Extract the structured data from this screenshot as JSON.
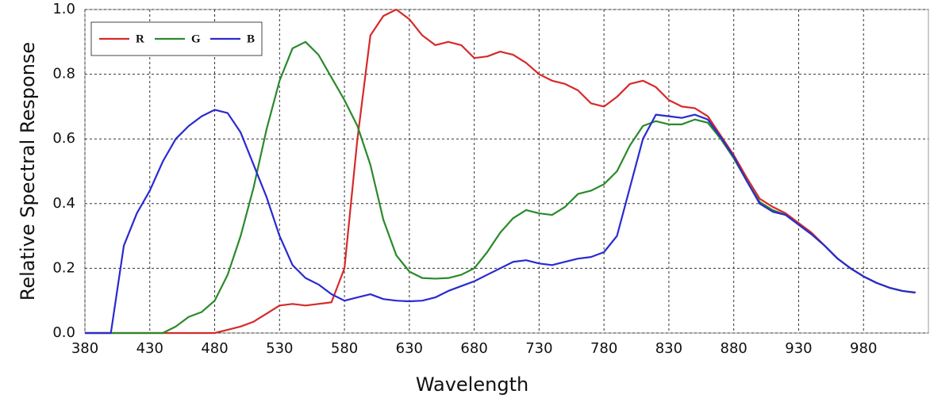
{
  "chart_data": {
    "type": "line",
    "xlabel": "Wavelength",
    "ylabel": "Relative Spectral Response",
    "x": [
      380,
      390,
      400,
      410,
      420,
      430,
      440,
      450,
      460,
      470,
      480,
      490,
      500,
      510,
      520,
      530,
      540,
      550,
      560,
      570,
      580,
      590,
      600,
      610,
      620,
      630,
      640,
      650,
      660,
      670,
      680,
      690,
      700,
      710,
      720,
      730,
      740,
      750,
      760,
      770,
      780,
      790,
      800,
      810,
      820,
      830,
      840,
      850,
      860,
      870,
      880,
      890,
      900,
      910,
      920,
      930,
      940,
      950,
      960,
      970,
      980,
      990,
      1000,
      1010,
      1020
    ],
    "series": [
      {
        "name": "R",
        "color": "#d62a2a",
        "values": [
          0,
          0,
          0,
          0,
          0,
          0,
          0,
          0,
          0,
          0,
          0,
          0.01,
          0.02,
          0.035,
          0.06,
          0.085,
          0.09,
          0.085,
          0.09,
          0.095,
          0.2,
          0.6,
          0.92,
          0.98,
          1.0,
          0.97,
          0.92,
          0.89,
          0.9,
          0.89,
          0.85,
          0.855,
          0.87,
          0.86,
          0.835,
          0.8,
          0.78,
          0.77,
          0.75,
          0.71,
          0.7,
          0.73,
          0.77,
          0.78,
          0.76,
          0.72,
          0.7,
          0.695,
          0.67,
          0.61,
          0.55,
          0.48,
          0.415,
          0.39,
          0.37,
          0.34,
          0.31,
          0.27,
          0.23,
          0.2,
          0.175,
          0.155,
          0.14,
          0.13,
          0.125
        ]
      },
      {
        "name": "G",
        "color": "#2a8a2a",
        "values": [
          0,
          0,
          0,
          0,
          0,
          0,
          0,
          0.02,
          0.05,
          0.065,
          0.1,
          0.18,
          0.3,
          0.45,
          0.63,
          0.78,
          0.88,
          0.9,
          0.86,
          0.79,
          0.72,
          0.64,
          0.52,
          0.35,
          0.24,
          0.19,
          0.17,
          0.168,
          0.17,
          0.18,
          0.2,
          0.25,
          0.31,
          0.355,
          0.38,
          0.37,
          0.365,
          0.39,
          0.43,
          0.44,
          0.46,
          0.5,
          0.58,
          0.64,
          0.655,
          0.645,
          0.645,
          0.66,
          0.65,
          0.6,
          0.54,
          0.47,
          0.405,
          0.38,
          0.365,
          0.335,
          0.305,
          0.27,
          0.23,
          0.2,
          0.175,
          0.155,
          0.14,
          0.13,
          0.125
        ]
      },
      {
        "name": "B",
        "color": "#2a2ad0",
        "values": [
          0,
          0,
          0,
          0.27,
          0.37,
          0.44,
          0.53,
          0.6,
          0.64,
          0.67,
          0.69,
          0.68,
          0.62,
          0.52,
          0.42,
          0.3,
          0.21,
          0.17,
          0.15,
          0.12,
          0.1,
          0.11,
          0.12,
          0.105,
          0.1,
          0.098,
          0.1,
          0.11,
          0.13,
          0.145,
          0.16,
          0.18,
          0.2,
          0.22,
          0.225,
          0.215,
          0.21,
          0.22,
          0.23,
          0.235,
          0.25,
          0.3,
          0.45,
          0.6,
          0.675,
          0.67,
          0.665,
          0.675,
          0.66,
          0.605,
          0.545,
          0.47,
          0.4,
          0.375,
          0.365,
          0.335,
          0.305,
          0.27,
          0.23,
          0.2,
          0.175,
          0.155,
          0.14,
          0.13,
          0.125
        ]
      }
    ],
    "xlim": [
      380,
      1030
    ],
    "xticks": [
      380,
      430,
      480,
      530,
      580,
      630,
      680,
      730,
      780,
      830,
      880,
      930,
      980
    ],
    "ylim": [
      0,
      1.0
    ],
    "yticks": [
      {
        "value": 0,
        "label": "0.0"
      },
      0.2,
      0.4,
      0.6,
      0.8,
      {
        "value": 1.0,
        "label": "1.0"
      }
    ],
    "grid": true,
    "legend": "upper left"
  }
}
